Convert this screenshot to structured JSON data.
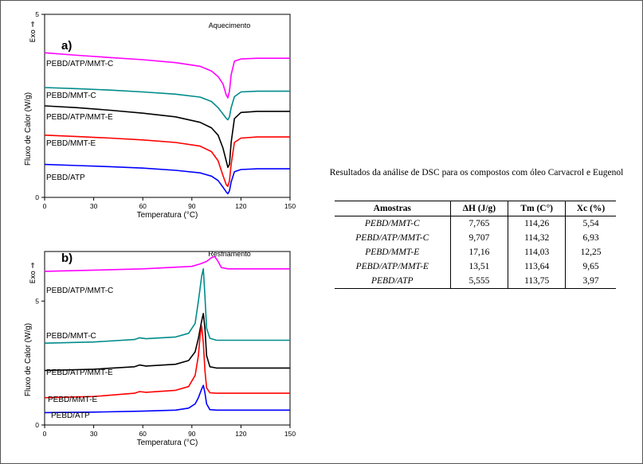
{
  "chart_data": [
    {
      "type": "line",
      "panel_label": "a)",
      "annotation": "Aquecimento",
      "xlabel": "Temperatura (°C)",
      "ylabel": "Fluxo de Calor (W/g)",
      "y_direction": "Exo ⇒",
      "xlim": [
        0,
        150
      ],
      "ylim": [
        0,
        5
      ],
      "x_ticks": [
        "0",
        "30",
        "60",
        "90",
        "120",
        "150"
      ],
      "y_ticks": [
        "0",
        "5"
      ],
      "grid": false,
      "series": [
        {
          "name": "PEBD/ATP/MMT-C",
          "color": "#ff00ff",
          "x": [
            0,
            20,
            40,
            60,
            80,
            95,
            102,
            106,
            109,
            111,
            112,
            113,
            114,
            116,
            120,
            130,
            150
          ],
          "y": [
            3.95,
            3.88,
            3.82,
            3.76,
            3.68,
            3.58,
            3.45,
            3.3,
            3.1,
            2.8,
            2.72,
            2.9,
            3.35,
            3.72,
            3.78,
            3.8,
            3.8
          ]
        },
        {
          "name": "PEBD/MMT-C",
          "color": "#008b8b",
          "x": [
            0,
            20,
            40,
            60,
            80,
            95,
            102,
            106,
            109,
            111,
            112,
            113,
            114,
            116,
            120,
            130,
            150
          ],
          "y": [
            3.0,
            2.97,
            2.93,
            2.88,
            2.82,
            2.74,
            2.62,
            2.45,
            2.28,
            2.16,
            2.12,
            2.2,
            2.45,
            2.75,
            2.88,
            2.9,
            2.9
          ]
        },
        {
          "name": "PEBD/ATP/MMT-E",
          "color": "#000000",
          "x": [
            0,
            20,
            40,
            60,
            80,
            95,
            102,
            106,
            109,
            111,
            112,
            113,
            114,
            116,
            120,
            130,
            150
          ],
          "y": [
            2.5,
            2.45,
            2.38,
            2.3,
            2.2,
            2.05,
            1.9,
            1.7,
            1.35,
            1.0,
            0.82,
            0.9,
            1.5,
            2.15,
            2.32,
            2.35,
            2.35
          ]
        },
        {
          "name": "PEBD/MMT-E",
          "color": "#ff0000",
          "x": [
            0,
            20,
            40,
            60,
            80,
            95,
            102,
            106,
            109,
            111,
            112,
            113,
            114,
            116,
            120,
            130,
            150
          ],
          "y": [
            1.7,
            1.66,
            1.62,
            1.57,
            1.5,
            1.4,
            1.25,
            1.0,
            0.6,
            0.35,
            0.3,
            0.45,
            0.9,
            1.5,
            1.62,
            1.65,
            1.65
          ]
        },
        {
          "name": "PEBD/ATP",
          "color": "#0000ff",
          "x": [
            0,
            20,
            40,
            60,
            80,
            95,
            102,
            106,
            109,
            111,
            112,
            113,
            114,
            116,
            120,
            130,
            150
          ],
          "y": [
            0.9,
            0.87,
            0.84,
            0.8,
            0.74,
            0.67,
            0.58,
            0.46,
            0.28,
            0.15,
            0.1,
            0.18,
            0.42,
            0.7,
            0.76,
            0.78,
            0.78
          ]
        }
      ]
    },
    {
      "type": "line",
      "panel_label": "b)",
      "annotation": "Resfriamento",
      "xlabel": "Temperatura (°C)",
      "ylabel": "Fluxo de Calor (W/g)",
      "y_direction": "Exo ⇒",
      "xlim": [
        0,
        150
      ],
      "ylim": [
        0,
        7
      ],
      "x_ticks": [
        "0",
        "30",
        "60",
        "90",
        "120",
        "150"
      ],
      "y_ticks": [
        "0",
        "5"
      ],
      "grid": false,
      "series": [
        {
          "name": "PEBD/ATP/MMT-C",
          "color": "#ff00ff",
          "x": [
            0,
            30,
            60,
            90,
            95,
            99,
            102,
            104,
            106,
            108,
            112,
            130,
            150
          ],
          "y": [
            6.2,
            6.25,
            6.3,
            6.4,
            6.5,
            6.6,
            6.75,
            6.8,
            6.6,
            6.35,
            6.3,
            6.3,
            6.3
          ]
        },
        {
          "name": "PEBD/MMT-C",
          "color": "#008b8b",
          "x": [
            0,
            30,
            55,
            58,
            62,
            80,
            88,
            92,
            94,
            96,
            97,
            98,
            99,
            101,
            105,
            120,
            150
          ],
          "y": [
            3.3,
            3.35,
            3.45,
            3.52,
            3.48,
            3.55,
            3.7,
            4.1,
            5.0,
            6.0,
            6.3,
            5.2,
            3.9,
            3.5,
            3.42,
            3.42,
            3.42
          ]
        },
        {
          "name": "PEBD/ATP/MMT-E",
          "color": "#000000",
          "x": [
            0,
            30,
            55,
            58,
            62,
            80,
            88,
            92,
            94,
            96,
            97,
            98,
            99,
            101,
            105,
            120,
            150
          ],
          "y": [
            2.2,
            2.25,
            2.35,
            2.42,
            2.38,
            2.45,
            2.6,
            2.95,
            3.5,
            4.2,
            4.5,
            3.9,
            2.8,
            2.35,
            2.3,
            2.3,
            2.3
          ]
        },
        {
          "name": "PEBD/MMT-E",
          "color": "#ff0000",
          "x": [
            0,
            30,
            55,
            58,
            62,
            80,
            88,
            92,
            94,
            95,
            96,
            97,
            98,
            99,
            101,
            105,
            120,
            150
          ],
          "y": [
            1.1,
            1.15,
            1.28,
            1.35,
            1.32,
            1.4,
            1.55,
            2.0,
            2.8,
            3.6,
            4.0,
            3.3,
            2.2,
            1.5,
            1.3,
            1.28,
            1.28,
            1.28
          ]
        },
        {
          "name": "PEBD/ATP",
          "color": "#0000ff",
          "x": [
            0,
            30,
            60,
            80,
            88,
            92,
            94,
            96,
            97,
            98,
            99,
            101,
            105,
            120,
            150
          ],
          "y": [
            0.5,
            0.52,
            0.56,
            0.6,
            0.68,
            0.85,
            1.1,
            1.45,
            1.6,
            1.3,
            0.85,
            0.62,
            0.6,
            0.6,
            0.6
          ]
        }
      ]
    }
  ],
  "table": {
    "caption": "Resultados  da análise  de DSC para os compostos  com óleo Carvacrol  e Eugenol",
    "headers": [
      "Amostras",
      "ΔH (J/g)",
      "Tm (C°)",
      "Xc (%)"
    ],
    "rows": [
      [
        "PEBD/MMT-C",
        "7,765",
        "114,26",
        "5,54"
      ],
      [
        "PEBD/ATP/MMT-C",
        "9,707",
        "114,32",
        "6,93"
      ],
      [
        "PEBD/MMT-E",
        "17,16",
        "114,03",
        "12,25"
      ],
      [
        "PEBD/ATP/MMT-E",
        "13,51",
        "113,64",
        "9,65"
      ],
      [
        "PEBD/ATP",
        "5,555",
        "113,75",
        "3,97"
      ]
    ]
  }
}
